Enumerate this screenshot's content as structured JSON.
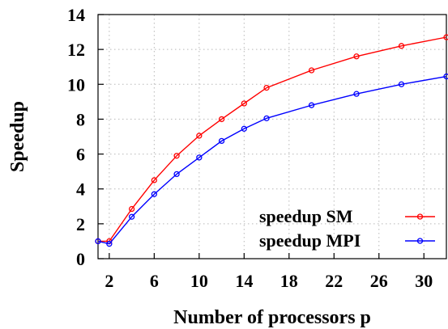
{
  "chart_data": {
    "type": "line",
    "title": "",
    "xlabel": "Number of processors p",
    "ylabel": "Speedup",
    "xlim": [
      1,
      32
    ],
    "ylim": [
      0,
      14
    ],
    "xticks": [
      2,
      6,
      10,
      14,
      18,
      22,
      26,
      30
    ],
    "yticks": [
      0,
      2,
      4,
      6,
      8,
      10,
      12,
      14
    ],
    "grid": true,
    "legend_position": "bottom-right",
    "series": [
      {
        "name": "speedup SM",
        "color": "#ff0000",
        "marker": "circle",
        "x": [
          1,
          2,
          4,
          6,
          8,
          10,
          12,
          14,
          16,
          20,
          24,
          28,
          32
        ],
        "y": [
          1.0,
          1.0,
          2.85,
          4.5,
          5.9,
          7.05,
          8.0,
          8.9,
          9.8,
          10.8,
          11.6,
          12.2,
          12.7
        ]
      },
      {
        "name": "speedup MPI",
        "color": "#0000ff",
        "marker": "circle",
        "x": [
          1,
          2,
          4,
          6,
          8,
          10,
          12,
          14,
          16,
          20,
          24,
          28,
          32
        ],
        "y": [
          1.0,
          0.85,
          2.4,
          3.7,
          4.85,
          5.8,
          6.75,
          7.45,
          8.05,
          8.8,
          9.45,
          10.0,
          10.45
        ]
      }
    ]
  }
}
